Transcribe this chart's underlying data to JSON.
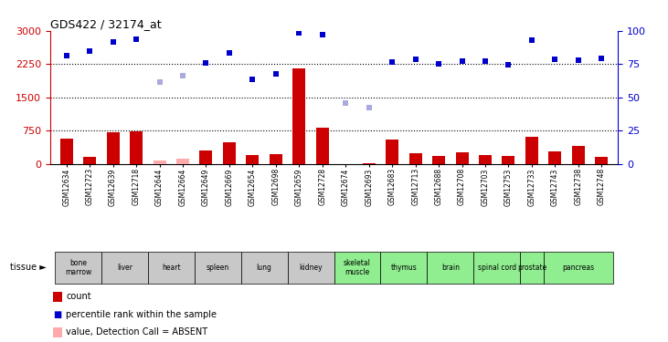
{
  "title": "GDS422 / 32174_at",
  "samples": [
    "GSM12634",
    "GSM12723",
    "GSM12639",
    "GSM12718",
    "GSM12644",
    "GSM12664",
    "GSM12649",
    "GSM12669",
    "GSM12654",
    "GSM12698",
    "GSM12659",
    "GSM12728",
    "GSM12674",
    "GSM12693",
    "GSM12683",
    "GSM12713",
    "GSM12688",
    "GSM12708",
    "GSM12703",
    "GSM12753",
    "GSM12733",
    "GSM12743",
    "GSM12738",
    "GSM12748"
  ],
  "count": [
    570,
    170,
    710,
    730,
    0,
    0,
    310,
    490,
    200,
    230,
    2150,
    820,
    5,
    20,
    560,
    240,
    185,
    270,
    200,
    175,
    620,
    280,
    420,
    170
  ],
  "count_is_absent": [
    false,
    false,
    false,
    false,
    true,
    true,
    false,
    false,
    false,
    false,
    false,
    false,
    false,
    false,
    false,
    false,
    false,
    false,
    false,
    false,
    false,
    false,
    false,
    false
  ],
  "count_absent_vals": [
    0,
    0,
    0,
    0,
    90,
    120,
    0,
    0,
    0,
    0,
    0,
    0,
    0,
    0,
    0,
    0,
    0,
    0,
    0,
    0,
    0,
    0,
    0,
    0
  ],
  "rank_vals": [
    2450,
    2550,
    2750,
    2820,
    1850,
    1980,
    2280,
    2500,
    1900,
    2030,
    2950,
    2910,
    1380,
    1270,
    2300,
    2350,
    2260,
    2320,
    2320,
    2240,
    2800,
    2350,
    2340,
    2370
  ],
  "rank_is_absent": [
    false,
    false,
    false,
    false,
    true,
    true,
    false,
    false,
    false,
    false,
    false,
    false,
    true,
    true,
    false,
    false,
    false,
    false,
    false,
    false,
    false,
    false,
    false,
    false
  ],
  "tissues": [
    {
      "name": "bone\nmarrow",
      "start": 0,
      "end": 1,
      "color": "#c8c8c8"
    },
    {
      "name": "liver",
      "start": 2,
      "end": 3,
      "color": "#c8c8c8"
    },
    {
      "name": "heart",
      "start": 4,
      "end": 5,
      "color": "#c8c8c8"
    },
    {
      "name": "spleen",
      "start": 6,
      "end": 7,
      "color": "#c8c8c8"
    },
    {
      "name": "lung",
      "start": 8,
      "end": 9,
      "color": "#c8c8c8"
    },
    {
      "name": "kidney",
      "start": 10,
      "end": 11,
      "color": "#c8c8c8"
    },
    {
      "name": "skeletal\nmuscle",
      "start": 12,
      "end": 13,
      "color": "#90ee90"
    },
    {
      "name": "thymus",
      "start": 14,
      "end": 15,
      "color": "#90ee90"
    },
    {
      "name": "brain",
      "start": 16,
      "end": 17,
      "color": "#90ee90"
    },
    {
      "name": "spinal cord",
      "start": 18,
      "end": 19,
      "color": "#90ee90"
    },
    {
      "name": "prostate",
      "start": 20,
      "end": 20,
      "color": "#90ee90"
    },
    {
      "name": "pancreas",
      "start": 21,
      "end": 23,
      "color": "#90ee90"
    }
  ],
  "ylim_left": [
    0,
    3000
  ],
  "ylim_right": [
    0,
    100
  ],
  "yticks_left": [
    0,
    750,
    1500,
    2250,
    3000
  ],
  "yticks_right": [
    0,
    25,
    50,
    75,
    100
  ],
  "bar_color": "#cc0000",
  "bar_absent_color": "#ffaaaa",
  "rank_color": "#0000cc",
  "rank_absent_color": "#aaaadd",
  "bg_color": "#ffffff",
  "left_axis_color": "#cc0000",
  "right_axis_color": "#0000cc"
}
